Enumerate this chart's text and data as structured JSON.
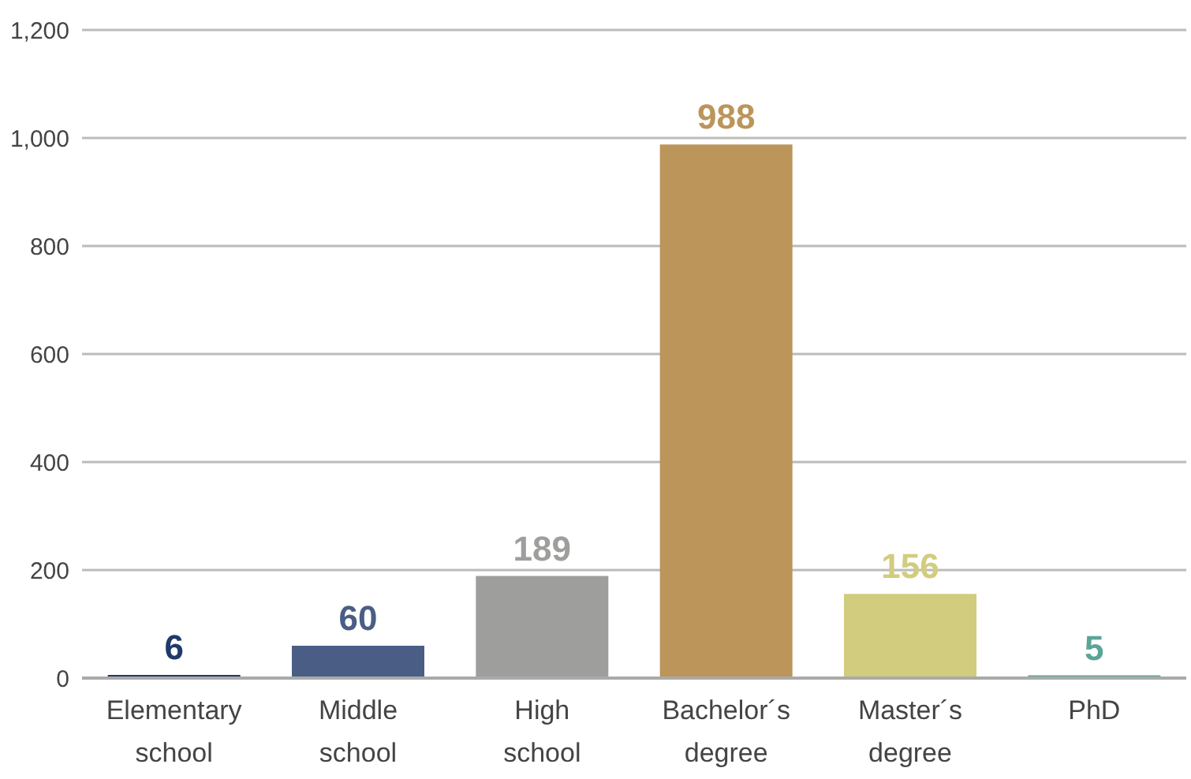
{
  "chart_data": {
    "type": "bar",
    "categories": [
      "Elementary school",
      "Middle school",
      "High school",
      "Bachelor´s degree",
      "Master´s degree",
      "PhD"
    ],
    "values": [
      6,
      60,
      189,
      988,
      156,
      5
    ],
    "colors": [
      "#1f3a6a",
      "#4a5e85",
      "#9e9e9c",
      "#bc955a",
      "#d2cc7e",
      "#5aa598"
    ],
    "ylim": [
      0,
      1200
    ],
    "yticks": [
      0,
      200,
      400,
      600,
      800,
      {
        "value": 1000,
        "label": "1,000"
      },
      {
        "value": 1200,
        "label": "1,200"
      }
    ],
    "grid": "y",
    "data_labels": true
  }
}
